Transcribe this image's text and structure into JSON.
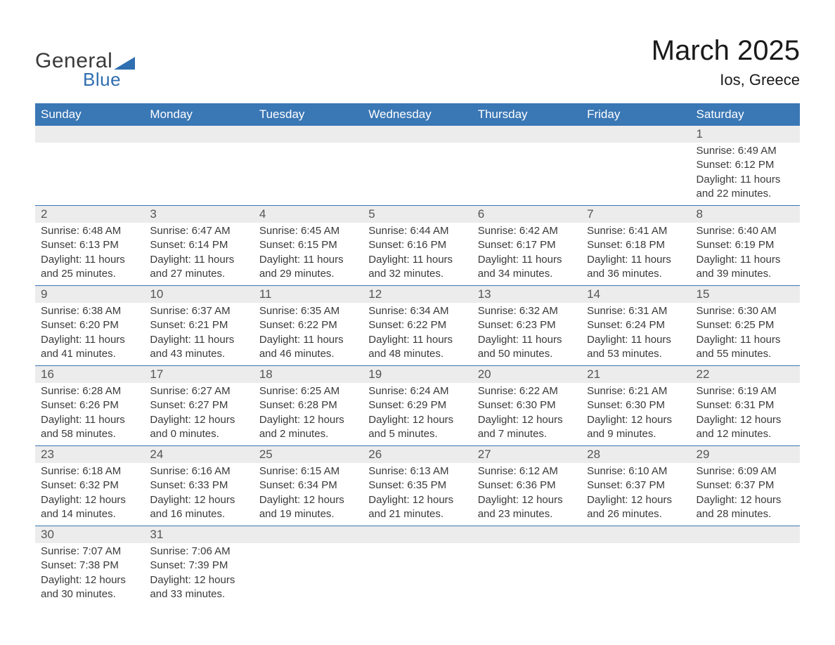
{
  "logo": {
    "text1": "General",
    "text2": "Blue",
    "shape_color": "#2f6eb0",
    "text_color": "#3a3a3a"
  },
  "title": "March 2025",
  "location": "Ios, Greece",
  "colors": {
    "header_bg": "#3a77b5",
    "header_text": "#ffffff",
    "strip_bg": "#ececec",
    "row_border": "#3a77b5",
    "body_text": "#3a3a3a"
  },
  "day_headers": [
    "Sunday",
    "Monday",
    "Tuesday",
    "Wednesday",
    "Thursday",
    "Friday",
    "Saturday"
  ],
  "weeks": [
    [
      null,
      null,
      null,
      null,
      null,
      null,
      {
        "n": "1",
        "sunrise": "Sunrise: 6:49 AM",
        "sunset": "Sunset: 6:12 PM",
        "daylight": "Daylight: 11 hours and 22 minutes."
      }
    ],
    [
      {
        "n": "2",
        "sunrise": "Sunrise: 6:48 AM",
        "sunset": "Sunset: 6:13 PM",
        "daylight": "Daylight: 11 hours and 25 minutes."
      },
      {
        "n": "3",
        "sunrise": "Sunrise: 6:47 AM",
        "sunset": "Sunset: 6:14 PM",
        "daylight": "Daylight: 11 hours and 27 minutes."
      },
      {
        "n": "4",
        "sunrise": "Sunrise: 6:45 AM",
        "sunset": "Sunset: 6:15 PM",
        "daylight": "Daylight: 11 hours and 29 minutes."
      },
      {
        "n": "5",
        "sunrise": "Sunrise: 6:44 AM",
        "sunset": "Sunset: 6:16 PM",
        "daylight": "Daylight: 11 hours and 32 minutes."
      },
      {
        "n": "6",
        "sunrise": "Sunrise: 6:42 AM",
        "sunset": "Sunset: 6:17 PM",
        "daylight": "Daylight: 11 hours and 34 minutes."
      },
      {
        "n": "7",
        "sunrise": "Sunrise: 6:41 AM",
        "sunset": "Sunset: 6:18 PM",
        "daylight": "Daylight: 11 hours and 36 minutes."
      },
      {
        "n": "8",
        "sunrise": "Sunrise: 6:40 AM",
        "sunset": "Sunset: 6:19 PM",
        "daylight": "Daylight: 11 hours and 39 minutes."
      }
    ],
    [
      {
        "n": "9",
        "sunrise": "Sunrise: 6:38 AM",
        "sunset": "Sunset: 6:20 PM",
        "daylight": "Daylight: 11 hours and 41 minutes."
      },
      {
        "n": "10",
        "sunrise": "Sunrise: 6:37 AM",
        "sunset": "Sunset: 6:21 PM",
        "daylight": "Daylight: 11 hours and 43 minutes."
      },
      {
        "n": "11",
        "sunrise": "Sunrise: 6:35 AM",
        "sunset": "Sunset: 6:22 PM",
        "daylight": "Daylight: 11 hours and 46 minutes."
      },
      {
        "n": "12",
        "sunrise": "Sunrise: 6:34 AM",
        "sunset": "Sunset: 6:22 PM",
        "daylight": "Daylight: 11 hours and 48 minutes."
      },
      {
        "n": "13",
        "sunrise": "Sunrise: 6:32 AM",
        "sunset": "Sunset: 6:23 PM",
        "daylight": "Daylight: 11 hours and 50 minutes."
      },
      {
        "n": "14",
        "sunrise": "Sunrise: 6:31 AM",
        "sunset": "Sunset: 6:24 PM",
        "daylight": "Daylight: 11 hours and 53 minutes."
      },
      {
        "n": "15",
        "sunrise": "Sunrise: 6:30 AM",
        "sunset": "Sunset: 6:25 PM",
        "daylight": "Daylight: 11 hours and 55 minutes."
      }
    ],
    [
      {
        "n": "16",
        "sunrise": "Sunrise: 6:28 AM",
        "sunset": "Sunset: 6:26 PM",
        "daylight": "Daylight: 11 hours and 58 minutes."
      },
      {
        "n": "17",
        "sunrise": "Sunrise: 6:27 AM",
        "sunset": "Sunset: 6:27 PM",
        "daylight": "Daylight: 12 hours and 0 minutes."
      },
      {
        "n": "18",
        "sunrise": "Sunrise: 6:25 AM",
        "sunset": "Sunset: 6:28 PM",
        "daylight": "Daylight: 12 hours and 2 minutes."
      },
      {
        "n": "19",
        "sunrise": "Sunrise: 6:24 AM",
        "sunset": "Sunset: 6:29 PM",
        "daylight": "Daylight: 12 hours and 5 minutes."
      },
      {
        "n": "20",
        "sunrise": "Sunrise: 6:22 AM",
        "sunset": "Sunset: 6:30 PM",
        "daylight": "Daylight: 12 hours and 7 minutes."
      },
      {
        "n": "21",
        "sunrise": "Sunrise: 6:21 AM",
        "sunset": "Sunset: 6:30 PM",
        "daylight": "Daylight: 12 hours and 9 minutes."
      },
      {
        "n": "22",
        "sunrise": "Sunrise: 6:19 AM",
        "sunset": "Sunset: 6:31 PM",
        "daylight": "Daylight: 12 hours and 12 minutes."
      }
    ],
    [
      {
        "n": "23",
        "sunrise": "Sunrise: 6:18 AM",
        "sunset": "Sunset: 6:32 PM",
        "daylight": "Daylight: 12 hours and 14 minutes."
      },
      {
        "n": "24",
        "sunrise": "Sunrise: 6:16 AM",
        "sunset": "Sunset: 6:33 PM",
        "daylight": "Daylight: 12 hours and 16 minutes."
      },
      {
        "n": "25",
        "sunrise": "Sunrise: 6:15 AM",
        "sunset": "Sunset: 6:34 PM",
        "daylight": "Daylight: 12 hours and 19 minutes."
      },
      {
        "n": "26",
        "sunrise": "Sunrise: 6:13 AM",
        "sunset": "Sunset: 6:35 PM",
        "daylight": "Daylight: 12 hours and 21 minutes."
      },
      {
        "n": "27",
        "sunrise": "Sunrise: 6:12 AM",
        "sunset": "Sunset: 6:36 PM",
        "daylight": "Daylight: 12 hours and 23 minutes."
      },
      {
        "n": "28",
        "sunrise": "Sunrise: 6:10 AM",
        "sunset": "Sunset: 6:37 PM",
        "daylight": "Daylight: 12 hours and 26 minutes."
      },
      {
        "n": "29",
        "sunrise": "Sunrise: 6:09 AM",
        "sunset": "Sunset: 6:37 PM",
        "daylight": "Daylight: 12 hours and 28 minutes."
      }
    ],
    [
      {
        "n": "30",
        "sunrise": "Sunrise: 7:07 AM",
        "sunset": "Sunset: 7:38 PM",
        "daylight": "Daylight: 12 hours and 30 minutes."
      },
      {
        "n": "31",
        "sunrise": "Sunrise: 7:06 AM",
        "sunset": "Sunset: 7:39 PM",
        "daylight": "Daylight: 12 hours and 33 minutes."
      },
      null,
      null,
      null,
      null,
      null
    ]
  ]
}
